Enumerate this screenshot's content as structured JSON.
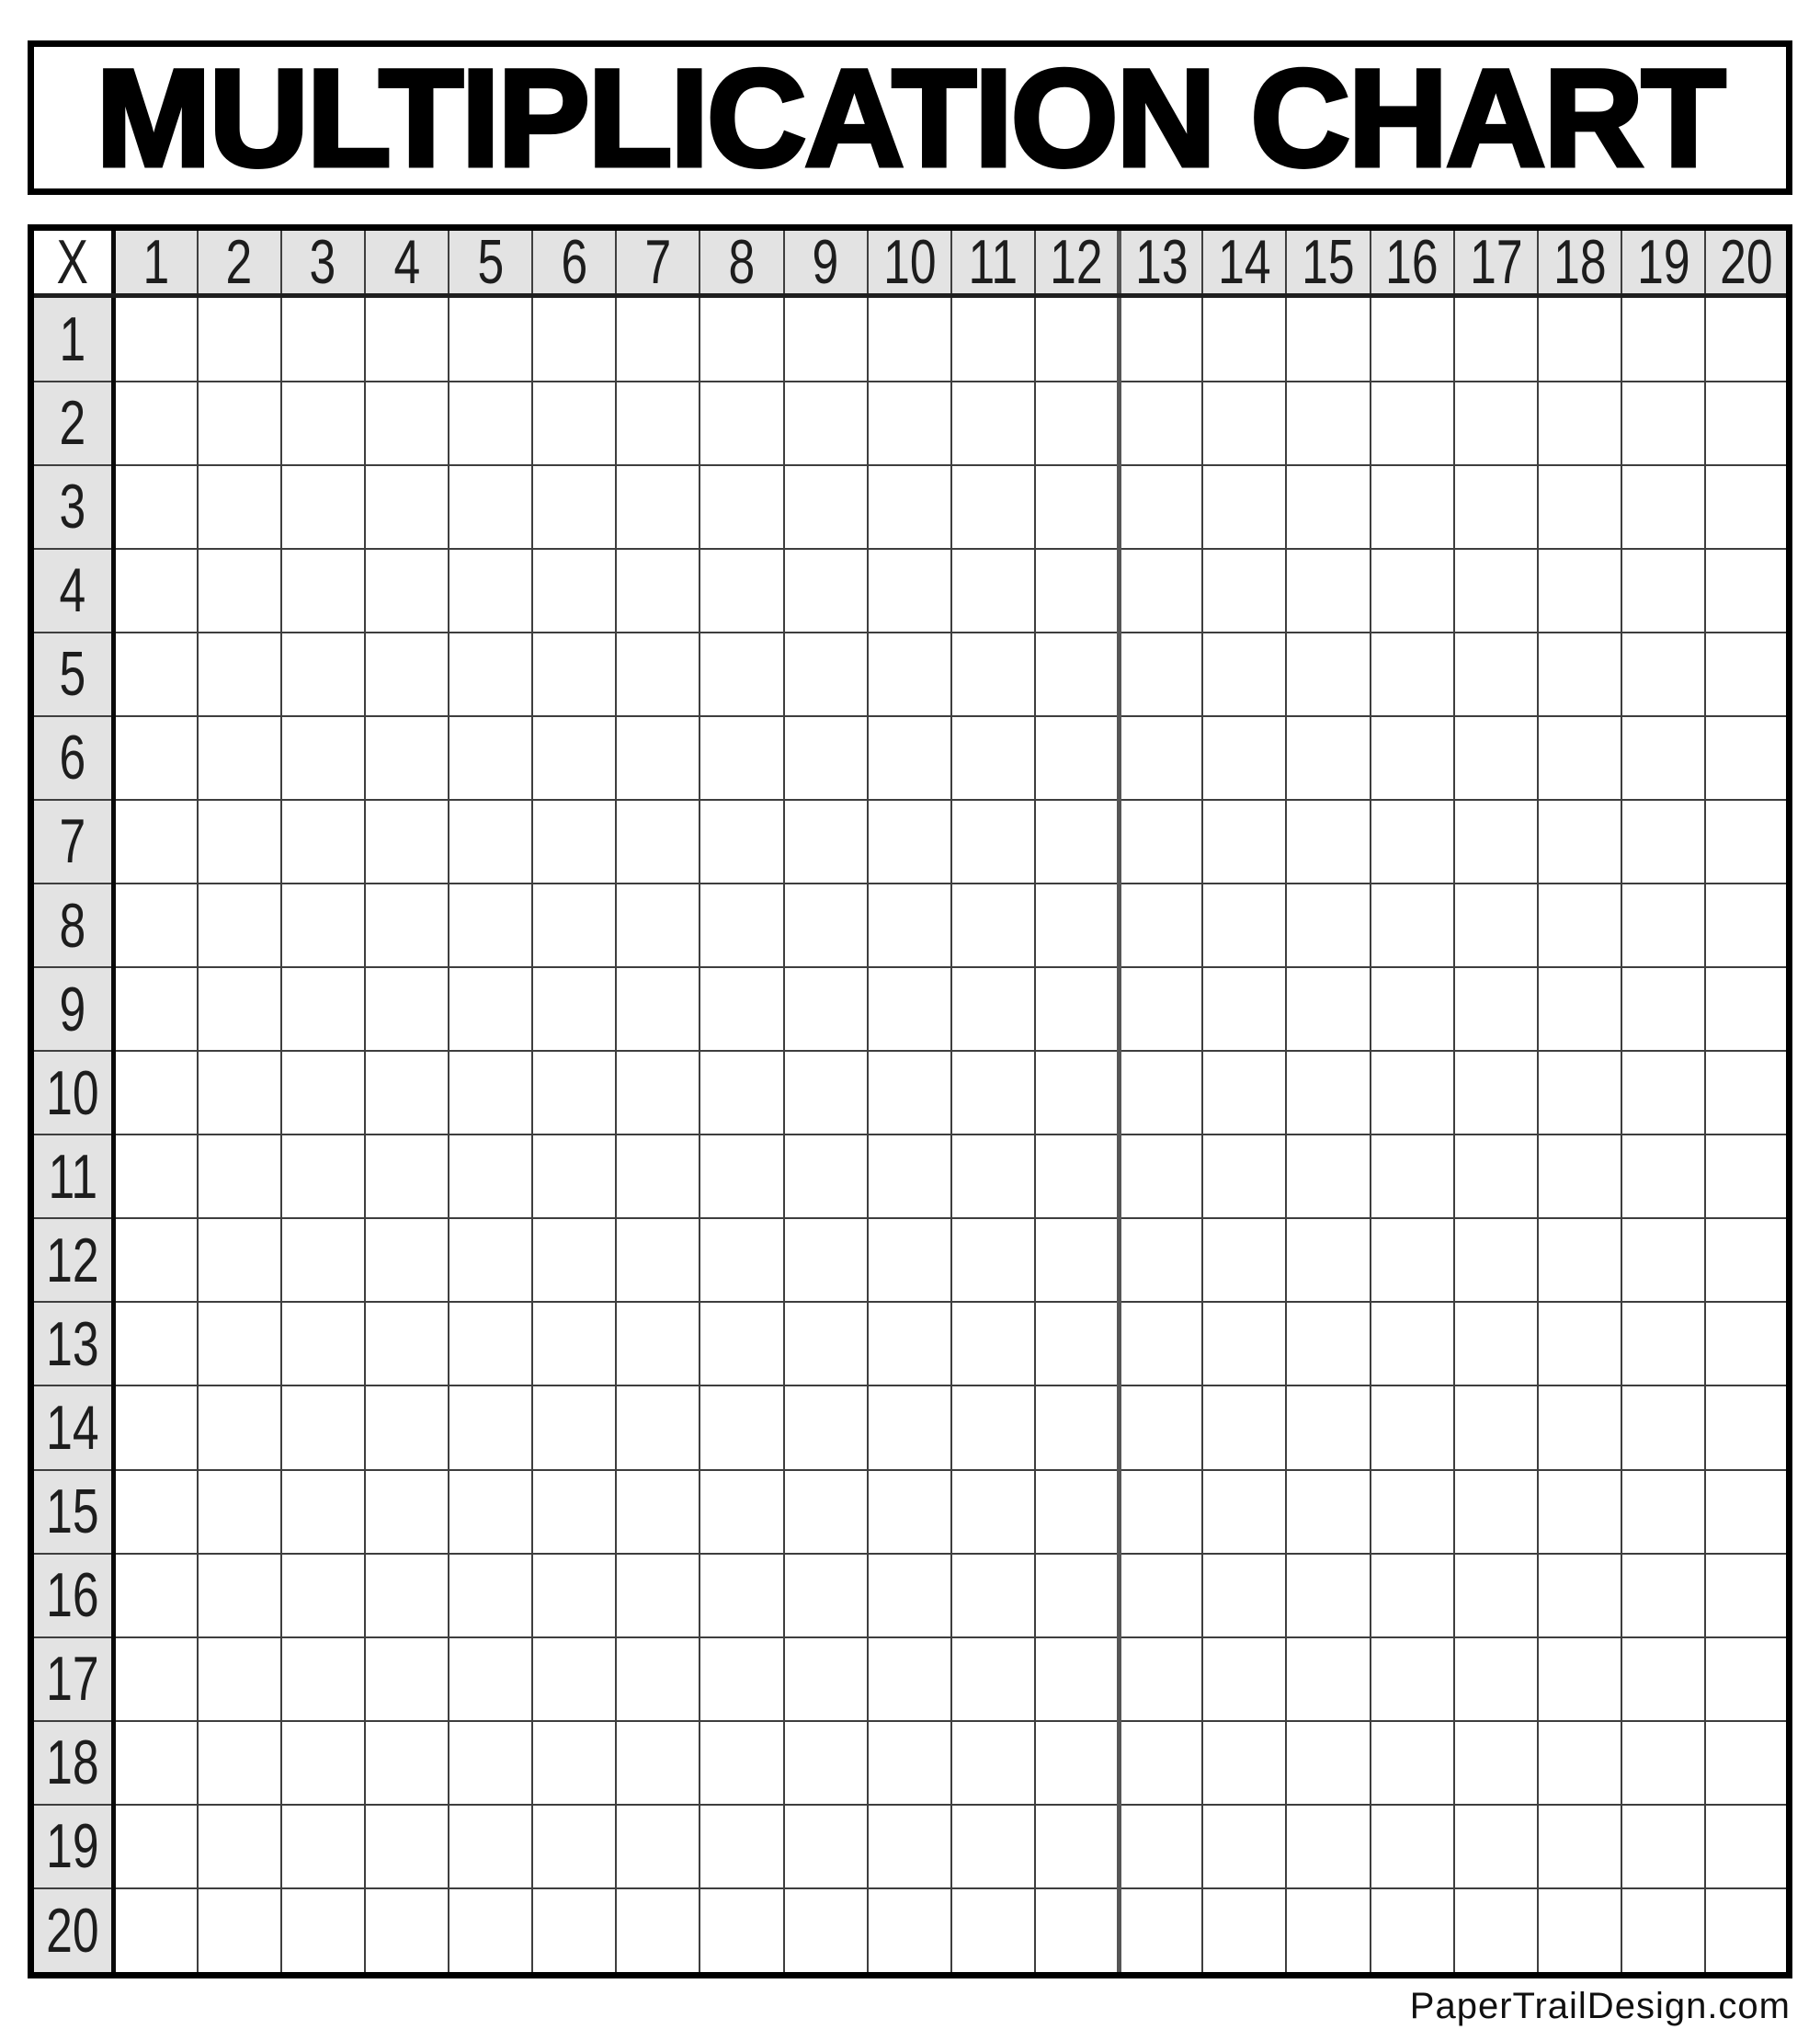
{
  "title": "MULTIPLICATION CHART",
  "table": {
    "corner_label": "X",
    "column_headers": [
      "1",
      "2",
      "3",
      "4",
      "5",
      "6",
      "7",
      "8",
      "9",
      "10",
      "11",
      "12",
      "13",
      "14",
      "15",
      "16",
      "17",
      "18",
      "19",
      "20"
    ],
    "row_headers": [
      "1",
      "2",
      "3",
      "4",
      "5",
      "6",
      "7",
      "8",
      "9",
      "10",
      "11",
      "12",
      "13",
      "14",
      "15",
      "16",
      "17",
      "18",
      "19",
      "20"
    ],
    "cells_blank": true
  },
  "footer": {
    "watermark": "PaperTrailDesign.com"
  },
  "colors": {
    "header_bg": "#e3e3e3",
    "grid_line": "#3e3e3e",
    "outer_border": "#000000",
    "section_divider": "#555555"
  }
}
